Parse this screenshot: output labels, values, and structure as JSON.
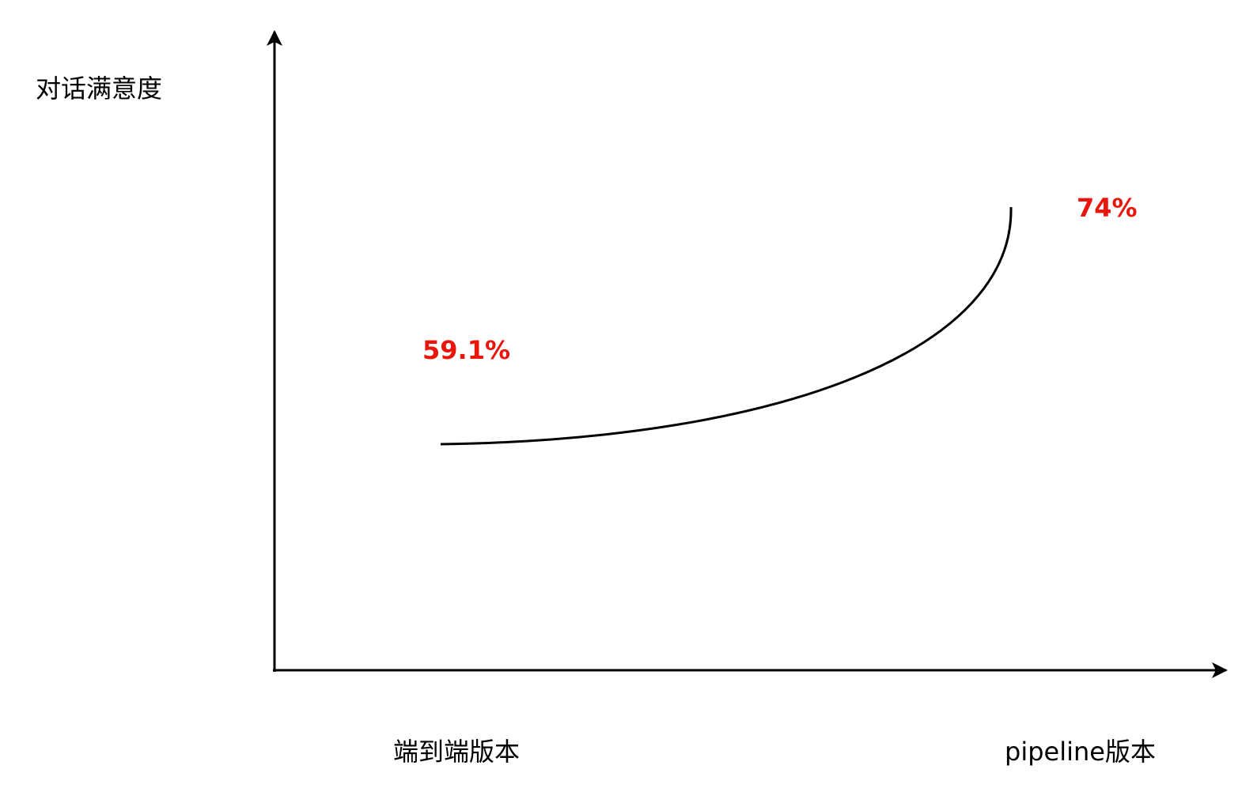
{
  "chart_data": {
    "type": "line",
    "title": "",
    "xlabel": "",
    "ylabel": "对话满意度",
    "categories": [
      "端到端版本",
      "pipeline版本"
    ],
    "series": [
      {
        "values": [
          59.1,
          74
        ]
      }
    ],
    "data_labels": [
      "59.1%",
      "74%"
    ],
    "grid": false,
    "legend": "none",
    "colors": {
      "line": "#000000",
      "axis": "#000000",
      "label": "#e8160c"
    }
  }
}
